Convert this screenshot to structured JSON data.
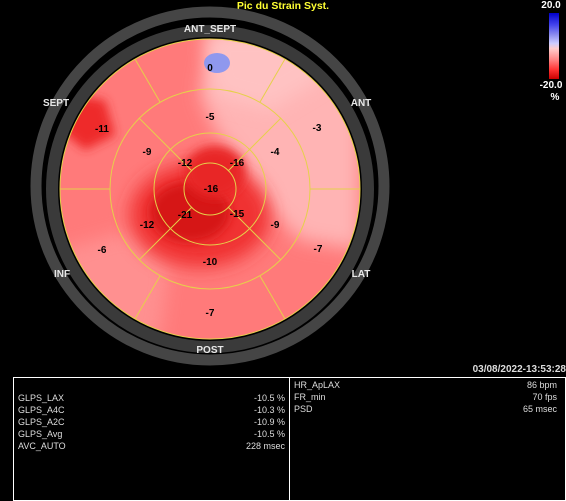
{
  "title": "Pic du Strain Syst.",
  "scale": {
    "max": "20.0",
    "min": "-20.0",
    "unit": "%"
  },
  "orientation": {
    "ant_sept": "ANT_SEPT",
    "ant": "ANT",
    "lat": "LAT",
    "post": "POST",
    "inf": "INF",
    "sept": "SEPT"
  },
  "segments": {
    "basal": {
      "ant_sept": "0",
      "ant": "-3",
      "lat": "-7",
      "post": "-7",
      "inf": "-6",
      "sept": "-11"
    },
    "mid": {
      "ant_sept": "-5",
      "ant": "-4",
      "lat": "-9",
      "post": "-10",
      "inf": "-12",
      "sept": "-9"
    },
    "apical": {
      "ant": "-16",
      "lat": "-15",
      "inf": "-21",
      "sept": "-12"
    },
    "apex": "-16"
  },
  "colors": {
    "title": "#ffff33",
    "grid": "#e6d04a",
    "ring": "#444444"
  },
  "timestamp": "03/08/2022-13:53:28",
  "left_panel": [
    {
      "label": "GLPS_LAX",
      "value": "-10.5 %"
    },
    {
      "label": "GLPS_A4C",
      "value": "-10.3 %"
    },
    {
      "label": "GLPS_A2C",
      "value": "-10.9 %"
    },
    {
      "label": "GLPS_Avg",
      "value": "-10.5 %"
    },
    {
      "label": "AVC_AUTO",
      "value": "228 msec"
    }
  ],
  "right_panel": [
    {
      "label": "HR_ApLAX",
      "value": "86 bpm"
    },
    {
      "label": "FR_min",
      "value": "70 fps"
    },
    {
      "label": "PSD",
      "value": "65 msec"
    }
  ]
}
